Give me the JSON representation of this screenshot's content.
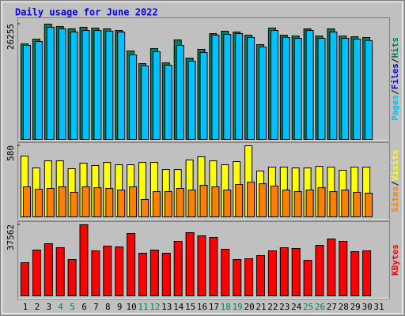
{
  "chart_data": [
    {
      "type": "bar",
      "title": "Daily usage for June 2022",
      "ylim": [
        0,
        26255
      ],
      "yticks": [
        26255
      ],
      "legend": [
        {
          "name": "Pages",
          "color": "#00c0ff"
        },
        {
          "name": "Files",
          "color": "#0000ff"
        },
        {
          "name": "Hits",
          "color": "#00805c"
        }
      ],
      "legend_separator": "/",
      "series": [
        {
          "color": "#00805c",
          "values": [
            21756,
            22835,
            26255,
            25713,
            25173,
            25532,
            25352,
            25173,
            24813,
            20139,
            17262,
            20678,
            17441,
            22656,
            18520,
            20498,
            24094,
            24634,
            24454,
            23735,
            21577,
            25352,
            23735,
            23555,
            25173,
            23555,
            25173,
            23555,
            23375,
            23195,
            null
          ]
        },
        {
          "color": "#00c0ff",
          "values": [
            21397,
            22296,
            25532,
            25173,
            24454,
            24813,
            24813,
            24634,
            24454,
            19239,
            16722,
            19959,
            16902,
            21397,
            17801,
            19778,
            23735,
            23914,
            24094,
            23195,
            21037,
            24813,
            23195,
            23015,
            24813,
            23015,
            24454,
            23015,
            22835,
            22476,
            null
          ]
        }
      ]
    },
    {
      "type": "bar",
      "ylim": [
        0,
        580
      ],
      "yticks": [
        580
      ],
      "legend": [
        {
          "name": "Sites",
          "color": "#ff8000"
        },
        {
          "name": "Visits",
          "color": "#ffff00"
        }
      ],
      "legend_separator": "/",
      "series": [
        {
          "color": "#ffff00",
          "values": [
            496,
            399,
            457,
            457,
            393,
            438,
            419,
            444,
            425,
            425,
            444,
            444,
            386,
            386,
            464,
            490,
            457,
            425,
            451,
            580,
            374,
            406,
            406,
            399,
            399,
            412,
            406,
            380,
            406,
            406,
            null
          ]
        },
        {
          "color": "#ff8000",
          "values": [
            245,
            225,
            232,
            245,
            200,
            245,
            238,
            232,
            219,
            245,
            142,
            206,
            206,
            232,
            219,
            258,
            245,
            219,
            264,
            283,
            270,
            251,
            219,
            206,
            219,
            238,
            206,
            219,
            200,
            193,
            null
          ]
        }
      ]
    },
    {
      "type": "bar",
      "ylim": [
        0,
        37562
      ],
      "yticks": [
        37562
      ],
      "legend": [
        {
          "name": "KBytes",
          "color": "#ff0000"
        }
      ],
      "legend_separator": "/",
      "categories": [
        "1",
        "2",
        "3",
        "4",
        "5",
        "6",
        "7",
        "8",
        "9",
        "10",
        "11",
        "12",
        "13",
        "14",
        "15",
        "16",
        "17",
        "18",
        "19",
        "20",
        "21",
        "22",
        "23",
        "24",
        "25",
        "26",
        "27",
        "28",
        "29",
        "30",
        "31"
      ],
      "weekend_indices": [
        3,
        4,
        10,
        11,
        17,
        18,
        24,
        25
      ],
      "weekend_color": "#00805c",
      "series": [
        {
          "color": "#ff0000",
          "values": [
            17531,
            24209,
            27548,
            25461,
            19200,
            37562,
            23792,
            26296,
            25879,
            32975,
            22540,
            24209,
            22540,
            28801,
            33392,
            31722,
            30888,
            24627,
            19200,
            19618,
            21287,
            23792,
            25461,
            25044,
            18783,
            26714,
            30053,
            28801,
            23374,
            23792,
            null
          ]
        }
      ]
    }
  ]
}
